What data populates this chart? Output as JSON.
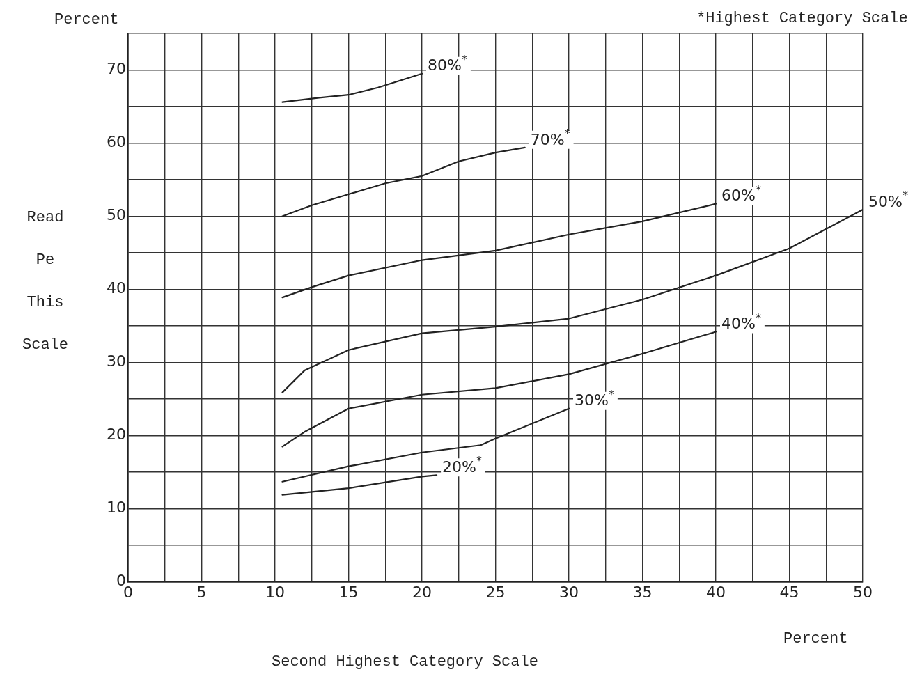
{
  "chart_data": {
    "type": "line",
    "xlabel": "Second Highest Category Scale",
    "ylabel": "Read Pe This Scale",
    "annotations": [
      "Percent",
      "Percent",
      "*Highest Category Scale"
    ],
    "xlim": [
      0,
      50
    ],
    "ylim": [
      0,
      75
    ],
    "xticks": [
      0,
      {
        "value": 2.5,
        "label": null
      },
      5,
      {
        "value": 7.5,
        "label": null
      },
      10,
      {
        "value": 12.5,
        "label": null
      },
      15,
      {
        "value": 17.5,
        "label": null
      },
      20,
      {
        "value": 22.5,
        "label": null
      },
      25,
      {
        "value": 27.5,
        "label": null
      },
      30,
      {
        "value": 32.5,
        "label": null
      },
      35,
      {
        "value": 37.5,
        "label": null
      },
      40,
      {
        "value": 42.5,
        "label": null
      },
      45,
      {
        "value": 47.5,
        "label": null
      },
      50
    ],
    "yticks": [
      0,
      {
        "value": 5,
        "label": null
      },
      10,
      {
        "value": 15,
        "label": null
      },
      20,
      {
        "value": 25,
        "label": null
      },
      30,
      {
        "value": 35,
        "label": null
      },
      40,
      {
        "value": 45,
        "label": null
      },
      50,
      {
        "value": 55,
        "label": null
      },
      60,
      {
        "value": 65,
        "label": null
      },
      70,
      {
        "value": 75,
        "label": null
      }
    ],
    "grid": true,
    "legend": false,
    "marker": "none",
    "line_style": "solid",
    "series": [
      {
        "name": "80%$^{*}$",
        "color": "#222222",
        "x": [
          10.5,
          13,
          15,
          17,
          20
        ],
        "values": [
          65.6,
          66.2,
          66.6,
          67.6,
          69.5
        ]
      },
      {
        "name": "70%$^{*}$",
        "color": "#222222",
        "x": [
          10.5,
          12.5,
          15,
          17.5,
          20,
          22.5,
          25,
          27
        ],
        "values": [
          50,
          51.5,
          53,
          54.5,
          55.5,
          57.5,
          58.7,
          59.4
        ]
      },
      {
        "name": "60%$^{*}$",
        "color": "#222222",
        "x": [
          10.5,
          12.5,
          15,
          20,
          25,
          30,
          35,
          40
        ],
        "values": [
          38.9,
          40.3,
          41.9,
          44,
          45.3,
          47.5,
          49.3,
          51.7
        ]
      },
      {
        "name": "50%$^{*}$",
        "color": "#222222",
        "x": [
          10.5,
          12,
          15,
          20,
          25,
          30,
          35,
          40,
          45,
          50
        ],
        "values": [
          25.9,
          28.9,
          31.7,
          34,
          34.9,
          36,
          38.6,
          41.9,
          45.6,
          50.9
        ]
      },
      {
        "name": "40%$^{*}$",
        "color": "#222222",
        "x": [
          10.5,
          12,
          15,
          20,
          25,
          30,
          35,
          40
        ],
        "values": [
          18.5,
          20.5,
          23.7,
          25.6,
          26.5,
          28.4,
          31.2,
          34.2
        ]
      },
      {
        "name": "30%$^{*}$",
        "color": "#222222",
        "x": [
          10.5,
          15,
          20,
          24,
          25,
          30
        ],
        "values": [
          13.7,
          15.8,
          17.7,
          18.7,
          19.6,
          23.7
        ]
      },
      {
        "name": "20%$^{*}$",
        "color": "#222222",
        "x": [
          10.5,
          15,
          20,
          21
        ],
        "values": [
          11.9,
          12.8,
          14.4,
          14.6
        ]
      }
    ]
  }
}
